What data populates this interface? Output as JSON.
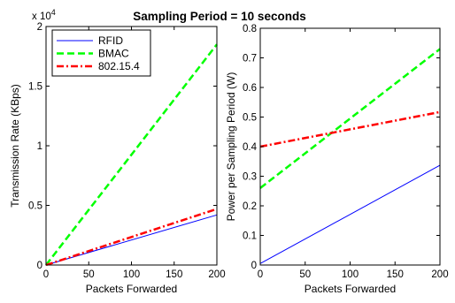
{
  "figure_title": "Sampling Period = 10 seconds",
  "chart_data": [
    {
      "type": "line",
      "xlabel": "Packets Forwarded",
      "ylabel": "Transmission Rate (KBps)",
      "x_ticks": [
        "0",
        "50",
        "100",
        "150",
        "200"
      ],
      "y_ticks": [
        "0",
        "0.5",
        "1",
        "1.5",
        "2"
      ],
      "y_multiplier": "x 10",
      "y_multiplier_exponent": "4",
      "xlim": [
        0,
        200
      ],
      "ylim": [
        0,
        20000
      ],
      "grid": false,
      "legend": "top-left",
      "x": [
        0,
        200
      ],
      "series": [
        {
          "name": "RFID",
          "values": [
            0,
            4200
          ],
          "color": "#0000ff",
          "style": "solid"
        },
        {
          "name": "BMAC",
          "values": [
            0,
            18500
          ],
          "color": "#00ff00",
          "style": "dashed"
        },
        {
          "name": "802.15.4",
          "values": [
            0,
            4700
          ],
          "color": "#ff0000",
          "style": "dash-dot"
        }
      ]
    },
    {
      "type": "line",
      "xlabel": "Packets Forwarded",
      "ylabel": "Power per Sampling Period (W)",
      "x_ticks": [
        "0",
        "50",
        "100",
        "150",
        "200"
      ],
      "y_ticks": [
        "0",
        "0.1",
        "0.2",
        "0.3",
        "0.4",
        "0.5",
        "0.6",
        "0.7",
        "0.8"
      ],
      "xlim": [
        0,
        200
      ],
      "ylim": [
        0,
        0.8
      ],
      "grid": false,
      "x": [
        0,
        200
      ],
      "series": [
        {
          "values": [
            0.005,
            0.337
          ],
          "color": "#0000ff",
          "style": "solid"
        },
        {
          "values": [
            0.26,
            0.73
          ],
          "color": "#00ff00",
          "style": "dashed"
        },
        {
          "values": [
            0.4,
            0.517
          ],
          "color": "#ff0000",
          "style": "dash-dot"
        }
      ]
    }
  ]
}
